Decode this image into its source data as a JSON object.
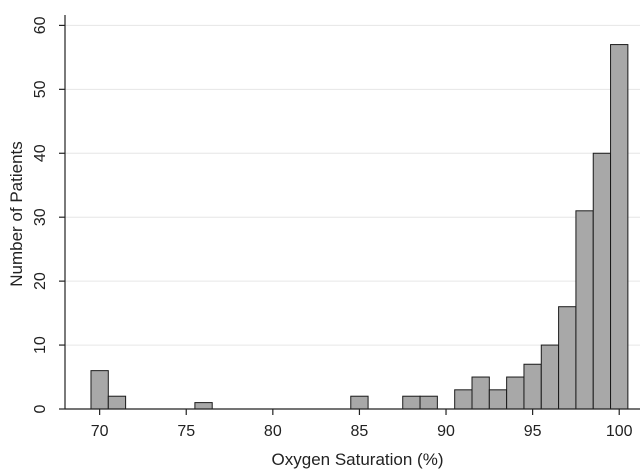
{
  "chart_data": {
    "type": "bar",
    "title": "",
    "xlabel": "Oxygen Saturation (%)",
    "ylabel": "Number of Patients",
    "xlim": [
      68,
      101.2
    ],
    "ylim": [
      0,
      61
    ],
    "bin_width": 1,
    "x_ticks": [
      70,
      75,
      80,
      85,
      90,
      95,
      100
    ],
    "y_ticks": [
      0,
      10,
      20,
      30,
      40,
      50,
      60
    ],
    "grid": true,
    "colors": {
      "bar_fill": "#a8a8a8",
      "bar_stroke": "#1a1a1a",
      "grid": "#e6e6e6",
      "axis": "#222222",
      "background": "#ffffff"
    },
    "bins": [
      {
        "x": 70,
        "count": 6
      },
      {
        "x": 71,
        "count": 2
      },
      {
        "x": 76,
        "count": 1
      },
      {
        "x": 85,
        "count": 2
      },
      {
        "x": 88,
        "count": 2
      },
      {
        "x": 89,
        "count": 2
      },
      {
        "x": 91,
        "count": 3
      },
      {
        "x": 92,
        "count": 5
      },
      {
        "x": 93,
        "count": 3
      },
      {
        "x": 94,
        "count": 5
      },
      {
        "x": 95,
        "count": 7
      },
      {
        "x": 96,
        "count": 10
      },
      {
        "x": 97,
        "count": 16
      },
      {
        "x": 98,
        "count": 31
      },
      {
        "x": 99,
        "count": 40
      },
      {
        "x": 100,
        "count": 57
      }
    ]
  }
}
